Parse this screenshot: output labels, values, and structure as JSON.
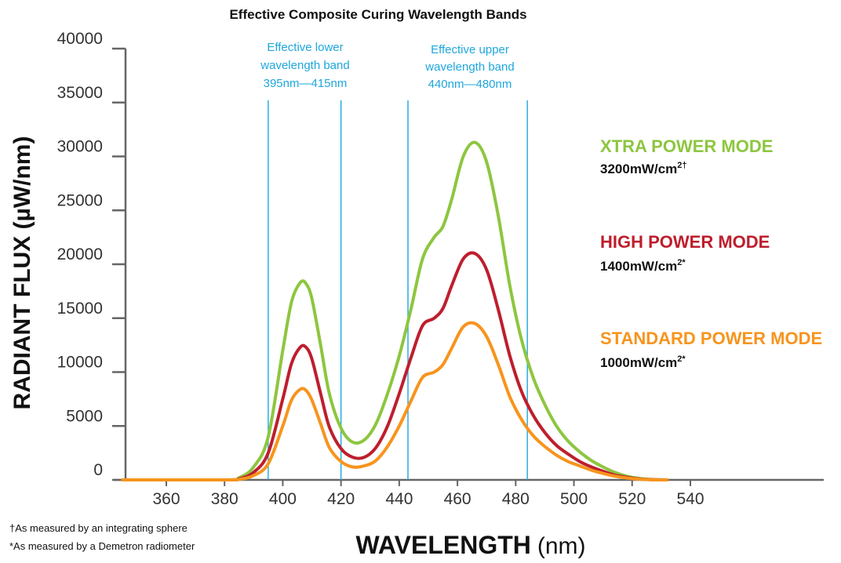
{
  "chart_data": {
    "type": "line",
    "title": "Effective Composite Curing Wavelength Bands",
    "xlabel": "WAVELENGTH",
    "xlabel_unit": "(nm)",
    "ylabel": "RADIANT FLUX (µW/nm)",
    "xlim": [
      345,
      580
    ],
    "ylim": [
      0,
      40000
    ],
    "x_ticks": [
      360,
      380,
      400,
      420,
      440,
      460,
      480,
      500,
      520,
      540
    ],
    "y_ticks": [
      0,
      5000,
      10000,
      15000,
      20000,
      25000,
      30000,
      35000,
      40000
    ],
    "band_lines": [
      395,
      420,
      443,
      484
    ],
    "bands": [
      {
        "lines": [
          "Effective lower",
          "wavelength band",
          "395nm—415nm"
        ]
      },
      {
        "lines": [
          "Effective upper",
          "wavelength band",
          "440nm—480nm"
        ]
      }
    ],
    "x": [
      345,
      380,
      385,
      390,
      395,
      400,
      403,
      406,
      408,
      410,
      413,
      416,
      420,
      424,
      428,
      432,
      436,
      440,
      444,
      448,
      452,
      455,
      458,
      462,
      466,
      470,
      474,
      478,
      482,
      486,
      490,
      494,
      498,
      502,
      506,
      510,
      514,
      518,
      522,
      526,
      532
    ],
    "series": [
      {
        "name": "XTRA POWER MODE",
        "value": "3200mW/cm",
        "mark": "2†",
        "color": "#8dc63f",
        "values": [
          0,
          0,
          200,
          1200,
          4000,
          12000,
          16500,
          18300,
          18200,
          16800,
          12500,
          8000,
          4800,
          3500,
          3700,
          5200,
          8000,
          11500,
          15800,
          20500,
          22500,
          23500,
          26000,
          30000,
          31300,
          29500,
          24500,
          18000,
          13000,
          9500,
          7000,
          5000,
          3600,
          2600,
          1800,
          1200,
          700,
          350,
          150,
          50,
          0
        ]
      },
      {
        "name": "HIGH POWER MODE",
        "value": "1400mW/cm",
        "mark": "2*",
        "color": "#be1e2d",
        "values": [
          0,
          0,
          100,
          700,
          2500,
          7500,
          10800,
          12300,
          12300,
          11200,
          8000,
          4900,
          2900,
          2100,
          2100,
          3000,
          5000,
          8000,
          11300,
          14300,
          15000,
          15900,
          18000,
          20500,
          21000,
          19500,
          15800,
          11500,
          8200,
          6000,
          4400,
          3200,
          2400,
          1700,
          1200,
          800,
          450,
          250,
          100,
          30,
          0
        ]
      },
      {
        "name": "STANDARD POWER MODE",
        "value": "1000mW/cm",
        "mark": "2*",
        "color": "#f7941d",
        "values": [
          0,
          0,
          50,
          400,
          1500,
          5000,
          7400,
          8400,
          8300,
          7400,
          5200,
          3000,
          1700,
          1200,
          1300,
          1800,
          3100,
          5000,
          7300,
          9500,
          10000,
          10700,
          12200,
          14200,
          14500,
          13300,
          10700,
          7700,
          5600,
          4100,
          3100,
          2300,
          1700,
          1300,
          900,
          600,
          350,
          180,
          70,
          20,
          0
        ]
      }
    ]
  },
  "footnotes": [
    "†As measured by an integrating sphere",
    "*As measured by a Demetron radiometer"
  ]
}
